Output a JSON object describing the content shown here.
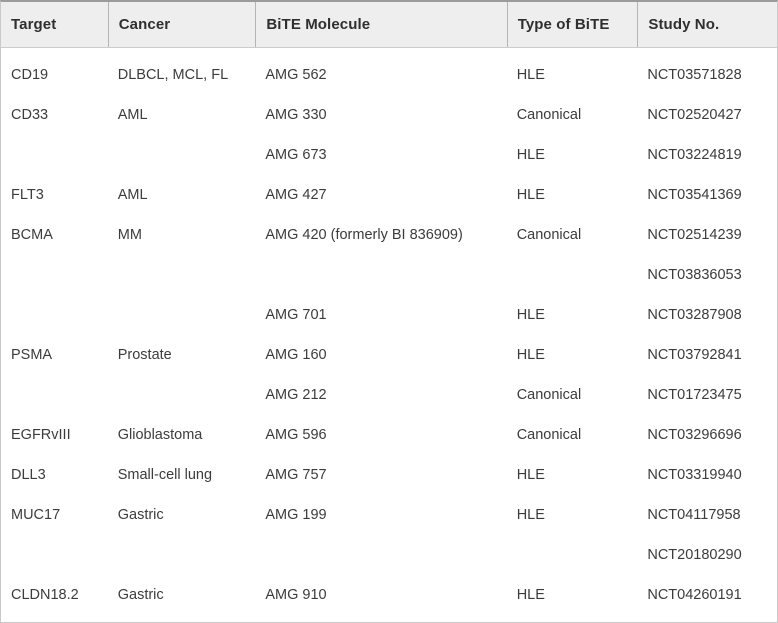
{
  "chart_data": {
    "type": "table",
    "columns": [
      {
        "key": "target",
        "label": "Target"
      },
      {
        "key": "cancer",
        "label": "Cancer"
      },
      {
        "key": "molecule",
        "label": "BiTE Molecule"
      },
      {
        "key": "type",
        "label": "Type of BiTE"
      },
      {
        "key": "study",
        "label": "Study No."
      }
    ],
    "rows": [
      [
        "CD19",
        "DLBCL, MCL, FL",
        "AMG 562",
        "HLE",
        "NCT03571828"
      ],
      [
        "CD33",
        "AML",
        "AMG 330",
        "Canonical",
        "NCT02520427"
      ],
      [
        "",
        "",
        "AMG 673",
        "HLE",
        "NCT03224819"
      ],
      [
        "FLT3",
        "AML",
        "AMG 427",
        "HLE",
        "NCT03541369"
      ],
      [
        "BCMA",
        "MM",
        "AMG 420 (formerly BI 836909)",
        "Canonical",
        "NCT02514239"
      ],
      [
        "",
        "",
        "",
        "",
        "NCT03836053"
      ],
      [
        "",
        "",
        "AMG 701",
        "HLE",
        "NCT03287908"
      ],
      [
        "PSMA",
        "Prostate",
        "AMG 160",
        "HLE",
        "NCT03792841"
      ],
      [
        "",
        "",
        "AMG 212",
        "Canonical",
        "NCT01723475"
      ],
      [
        "EGFRvIII",
        "Glioblastoma",
        "AMG 596",
        "Canonical",
        "NCT03296696"
      ],
      [
        "DLL3",
        "Small-cell lung",
        "AMG 757",
        "HLE",
        "NCT03319940"
      ],
      [
        "MUC17",
        "Gastric",
        "AMG 199",
        "HLE",
        "NCT04117958"
      ],
      [
        "",
        "",
        "",
        "",
        "NCT20180290"
      ],
      [
        "CLDN18.2",
        "Gastric",
        "AMG 910",
        "HLE",
        "NCT04260191"
      ]
    ]
  },
  "colors": {
    "header_bg": "#eeeeee",
    "outer_border": "#c9c9c9",
    "top_border": "#9b9b9b",
    "header_divider": "#b4b4b4",
    "header_bottom_border": "#cccccc",
    "text": "#3c3c3c",
    "header_text": "#2f2f2f"
  }
}
